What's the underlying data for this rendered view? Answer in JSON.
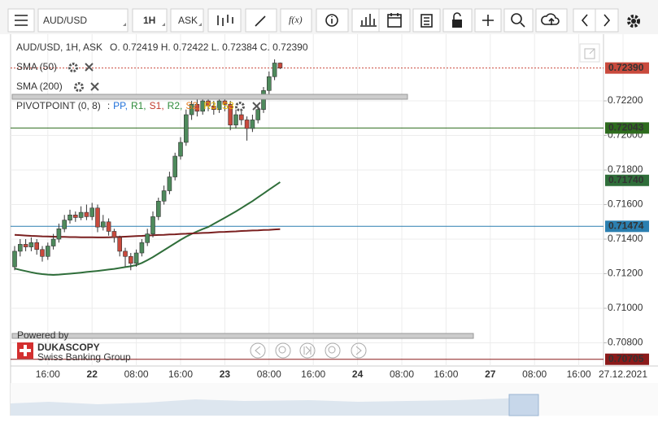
{
  "toolbar": {
    "symbol": "AUD/USD",
    "period": "1H",
    "side": "ASK",
    "formula": "f(x)"
  },
  "chart_data": {
    "type": "candlestick",
    "title": "AUD/USD, 1H, ASK",
    "ohlc_text": "O. 0.72419 H. 0.72422 L. 0.72384 C. 0.72390",
    "pivot": {
      "name": "PIVOTPOINT (0, 8)",
      "prefix": ":",
      "levels": [
        {
          "label": "PP,",
          "color": "#1e6fd9"
        },
        {
          "label": "R1,",
          "color": "#2e8b3a"
        },
        {
          "label": "S1,",
          "color": "#c0392b"
        },
        {
          "label": "R2,",
          "color": "#2e8b3a"
        },
        {
          "label": "S2,",
          "color": "#e67e22"
        },
        {
          "label": "R3,",
          "color": "#e6b800"
        },
        {
          "label": "S3",
          "color": "#e6b800"
        }
      ]
    },
    "up_color": "#4e8a5c",
    "down_color": "#c94a3d",
    "open": [
      0.7124,
      0.7133,
      0.7137,
      0.71355,
      0.7138,
      0.7134,
      0.713,
      0.7136,
      0.714,
      0.7146,
      0.7151,
      0.7154,
      0.71525,
      0.71555,
      0.7153,
      0.7158,
      0.7147,
      0.715,
      0.71445,
      0.7141,
      0.7133,
      0.713,
      0.7126,
      0.7132,
      0.7138,
      0.7143,
      0.7153,
      0.7162,
      0.7168,
      0.7176,
      0.7188,
      0.7196,
      0.7212,
      0.7218,
      0.7214,
      0.722,
      0.7217,
      0.7215,
      0.722,
      0.7218,
      0.7206,
      0.7212,
      0.7209,
      0.7204,
      0.7209,
      0.7215,
      0.7226,
      0.7234,
      0.72419
    ],
    "high": [
      0.7136,
      0.714,
      0.714,
      0.7141,
      0.714,
      0.7136,
      0.7138,
      0.7143,
      0.7149,
      0.7154,
      0.7157,
      0.7156,
      0.7159,
      0.716,
      0.7161,
      0.716,
      0.7154,
      0.7152,
      0.7146,
      0.7142,
      0.7135,
      0.7132,
      0.7134,
      0.714,
      0.7146,
      0.7156,
      0.7164,
      0.7171,
      0.7179,
      0.719,
      0.7199,
      0.7215,
      0.722,
      0.7222,
      0.7223,
      0.7222,
      0.722,
      0.7223,
      0.7222,
      0.722,
      0.7215,
      0.7214,
      0.7211,
      0.7212,
      0.7217,
      0.7228,
      0.7237,
      0.7244,
      0.72422
    ],
    "low": [
      0.7122,
      0.713,
      0.7133,
      0.7133,
      0.7131,
      0.7127,
      0.7128,
      0.7134,
      0.7138,
      0.7144,
      0.7149,
      0.715,
      0.7151,
      0.7151,
      0.7151,
      0.7144,
      0.7145,
      0.7142,
      0.7138,
      0.713,
      0.7124,
      0.7122,
      0.7124,
      0.713,
      0.7136,
      0.7141,
      0.7151,
      0.716,
      0.7166,
      0.7174,
      0.7186,
      0.7194,
      0.7209,
      0.7211,
      0.7212,
      0.7214,
      0.7212,
      0.7213,
      0.7214,
      0.7203,
      0.7204,
      0.7206,
      0.7197,
      0.7202,
      0.7207,
      0.7213,
      0.7224,
      0.7232,
      0.72384
    ],
    "close": [
      0.7133,
      0.7137,
      0.71355,
      0.7138,
      0.7134,
      0.713,
      0.7136,
      0.714,
      0.7146,
      0.7151,
      0.7154,
      0.71525,
      0.71555,
      0.7153,
      0.7158,
      0.7147,
      0.715,
      0.71445,
      0.7141,
      0.7133,
      0.713,
      0.7126,
      0.7132,
      0.7138,
      0.7143,
      0.7153,
      0.7162,
      0.7168,
      0.7176,
      0.7188,
      0.7196,
      0.7212,
      0.7218,
      0.7214,
      0.722,
      0.7217,
      0.7215,
      0.722,
      0.7218,
      0.7206,
      0.7212,
      0.7209,
      0.7204,
      0.7209,
      0.7215,
      0.7226,
      0.7234,
      0.72419,
      0.7239
    ],
    "series": [
      {
        "name": "SMA (50)",
        "color": "#2f6e3a",
        "values": [
          0.7123,
          0.71222,
          0.71215,
          0.71208,
          0.71202,
          0.71198,
          0.71195,
          0.71193,
          0.71195,
          0.71198,
          0.712,
          0.71203,
          0.71206,
          0.7121,
          0.71213,
          0.71216,
          0.7122,
          0.71224,
          0.71228,
          0.71233,
          0.71238,
          0.71243,
          0.7125,
          0.71262,
          0.71278,
          0.71296,
          0.71316,
          0.71336,
          0.71356,
          0.71376,
          0.71396,
          0.71414,
          0.7143,
          0.71445,
          0.71458,
          0.7147,
          0.71488,
          0.71506,
          0.71524,
          0.71542,
          0.7156,
          0.7158,
          0.716,
          0.7162,
          0.71642,
          0.71664,
          0.71686,
          0.71708,
          0.7173
        ]
      },
      {
        "name": "SMA (200)",
        "color": "#7a1f1f",
        "values": [
          0.71425,
          0.71423,
          0.71421,
          0.71419,
          0.71418,
          0.71416,
          0.71415,
          0.71414,
          0.71413,
          0.71413,
          0.71412,
          0.71412,
          0.71411,
          0.71411,
          0.71411,
          0.7141,
          0.7141,
          0.71411,
          0.71412,
          0.71413,
          0.71414,
          0.71416,
          0.71418,
          0.71419,
          0.71421,
          0.71422,
          0.71424,
          0.71425,
          0.71427,
          0.71428,
          0.7143,
          0.71431,
          0.71433,
          0.71434,
          0.71436,
          0.71437,
          0.71439,
          0.71441,
          0.71442,
          0.71444,
          0.71445,
          0.71447,
          0.71448,
          0.7145,
          0.71451,
          0.71453,
          0.71454,
          0.71456,
          0.71458
        ]
      }
    ],
    "ylim": [
      0.70666,
      0.72586
    ],
    "yticks": [
      {
        "value": 0.722,
        "label": "0.72200"
      },
      {
        "value": 0.72,
        "label": "0.72000"
      },
      {
        "value": 0.718,
        "label": "0.71800"
      },
      {
        "value": 0.716,
        "label": "0.71600"
      },
      {
        "value": 0.714,
        "label": "0.71400"
      },
      {
        "value": 0.712,
        "label": "0.71200"
      },
      {
        "value": 0.71,
        "label": "0.71000"
      },
      {
        "value": 0.708,
        "label": "0.70800"
      }
    ],
    "x_labels": [
      "16:00",
      "22",
      "08:00",
      "16:00",
      "23",
      "08:00",
      "16:00",
      "24",
      "08:00",
      "16:00",
      "27",
      "08:00",
      "16:00",
      "27.12.2021"
    ],
    "price_lines": [
      {
        "value": 0.7239,
        "label": "0.72390",
        "color": "#c94a3d",
        "line": "dashed"
      },
      {
        "value": 0.72043,
        "label": "0.72043",
        "color": "#2e6b1e",
        "line": "solid"
      },
      {
        "value": 0.7174,
        "label": "0.71740",
        "color": "#2f6e3a",
        "line": "none"
      },
      {
        "value": 0.71474,
        "label": "0.71474",
        "color": "#2b7fb0",
        "line": "solid"
      },
      {
        "value": 0.70705,
        "label": "0.70705",
        "color": "#8b1a1a",
        "line": "solid"
      }
    ],
    "grid": true
  },
  "watermark": {
    "line1": "Powered by",
    "brand": "DUKASCOPY",
    "tagline": "Swiss Banking Group"
  }
}
